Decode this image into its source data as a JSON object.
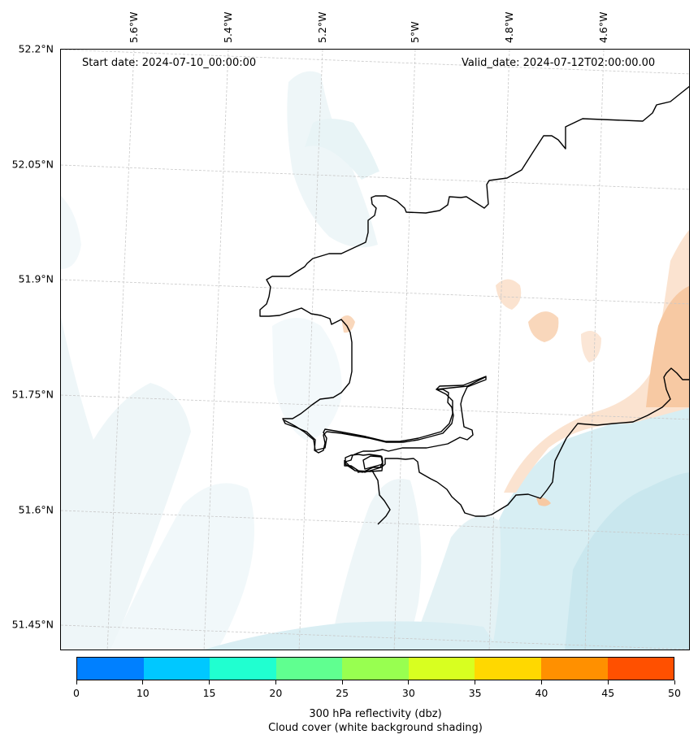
{
  "map": {
    "start_date": "Start date: 2024-07-10_00:00:00",
    "valid_date": "Valid_date: 2024-07-12T02:00:00.00",
    "lat_labels": [
      "52.2°N",
      "52.05°N",
      "51.9°N",
      "51.75°N",
      "51.6°N",
      "51.45°N"
    ],
    "lon_labels": [
      "5.6°W",
      "5.4°W",
      "5.2°W",
      "5°W",
      "4.8°W",
      "4.6°W"
    ],
    "colors": {
      "cloud_light": "#eef6f8",
      "cloud_mid": "#d7eef3",
      "cloud_strong": "#c3e4ec",
      "reflectivity_low": "#fbe3d0",
      "reflectivity_mid": "#f7c9a3",
      "coastline": "#000000",
      "gridline": "#c8c8c8"
    }
  },
  "colorbar": {
    "tick_labels": [
      "0",
      "10",
      "15",
      "20",
      "25",
      "30",
      "35",
      "40",
      "45",
      "50"
    ],
    "colors": [
      "#0080ff",
      "#00c8ff",
      "#20ffd0",
      "#60ff90",
      "#98ff50",
      "#d8ff20",
      "#ffd800",
      "#ff9000",
      "#ff5000"
    ],
    "title_line1": "300 hPa reflectivity (dbz)",
    "title_line2": "Cloud cover (white background shading)"
  }
}
